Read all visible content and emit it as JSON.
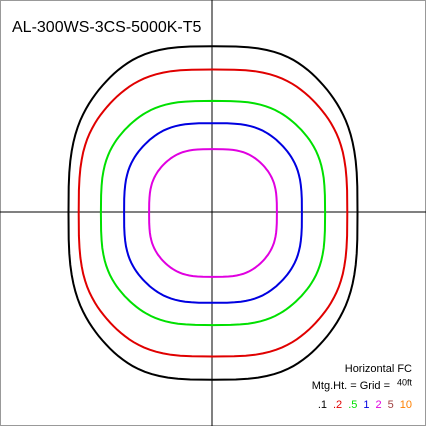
{
  "chart_data": {
    "type": "isoline",
    "title": "AL-300WS-3CS-5000K-T5",
    "units_label": "Horizontal FC",
    "mounting_label": "Mtg.Ht. = Grid =",
    "mounting_value": "40ft",
    "xlim": [
      -2.3,
      2.3
    ],
    "ylim": [
      -2.3,
      2.3
    ],
    "series": [
      {
        "name": ".1",
        "color": "#000000",
        "values": [
          1.56,
          1.8
        ]
      },
      {
        "name": ".2",
        "color": "#e00000",
        "values": [
          1.45,
          1.55
        ]
      },
      {
        "name": ".5",
        "color": "#00e000",
        "values": [
          1.21,
          1.21
        ]
      },
      {
        "name": "1",
        "color": "#0000e0",
        "values": [
          0.96,
          0.97
        ]
      },
      {
        "name": "2",
        "color": "#e000e0",
        "values": [
          0.69,
          0.69
        ]
      },
      {
        "name": "5",
        "color": "#a04040",
        "values": null
      },
      {
        "name": "10",
        "color": "#ff8000",
        "values": null
      }
    ]
  }
}
